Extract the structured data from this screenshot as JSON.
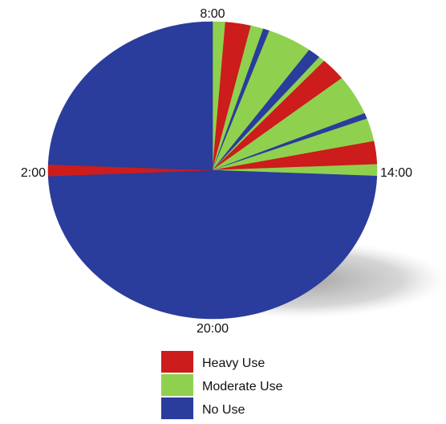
{
  "chart_data": {
    "type": "pie",
    "title": "",
    "unit": "hours",
    "clock_labels": [
      "8:00",
      "14:00",
      "20:00",
      "2:00"
    ],
    "start_hour": 8,
    "segments": [
      {
        "category": "Moderate Use",
        "hours": 0.3
      },
      {
        "category": "Heavy Use",
        "hours": 0.6
      },
      {
        "category": "Moderate Use",
        "hours": 0.3
      },
      {
        "category": "No Use",
        "hours": 0.15
      },
      {
        "category": "Moderate Use",
        "hours": 1.05
      },
      {
        "category": "No Use",
        "hours": 0.3
      },
      {
        "category": "Moderate Use",
        "hours": 0.15
      },
      {
        "category": "Heavy Use",
        "hours": 0.6
      },
      {
        "category": "Moderate Use",
        "hours": 1.05
      },
      {
        "category": "No Use",
        "hours": 0.15
      },
      {
        "category": "Moderate Use",
        "hours": 0.6
      },
      {
        "category": "Heavy Use",
        "hours": 0.6
      },
      {
        "category": "Moderate Use",
        "hours": 0.3
      },
      {
        "category": "No Use",
        "hours": 11.7
      },
      {
        "category": "Heavy Use",
        "hours": 0.3
      },
      {
        "category": "No Use",
        "hours": 5.85
      }
    ],
    "legend": [
      {
        "label": "Heavy Use",
        "color": "#cc1c1c"
      },
      {
        "label": "Moderate Use",
        "color": "#8fd14f"
      },
      {
        "label": "No Use",
        "color": "#2a3c9c"
      }
    ],
    "legend_position": "bottom",
    "colors": {
      "Heavy Use": "#cc1c1c",
      "Moderate Use": "#8fd14f",
      "No Use": "#2a3c9c"
    }
  }
}
